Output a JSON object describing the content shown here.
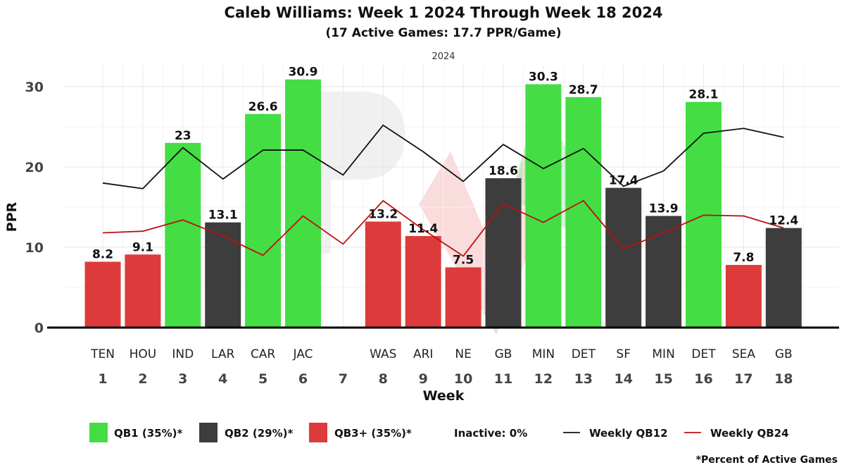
{
  "chart_data": {
    "type": "bar",
    "title": "Caleb Williams: Week 1 2024 Through Week 18 2024",
    "subtitle": "(17 Active Games: 17.7 PPR/Game)",
    "facet_label": "2024",
    "xlabel": "Week",
    "ylabel": "PPR",
    "ylim": [
      0,
      32
    ],
    "yticks": [
      0,
      10,
      20,
      30
    ],
    "grid": true,
    "weeks": [
      1,
      2,
      3,
      4,
      5,
      6,
      7,
      8,
      9,
      10,
      11,
      12,
      13,
      14,
      15,
      16,
      17,
      18
    ],
    "opponents": [
      "TEN",
      "HOU",
      "IND",
      "LAR",
      "CAR",
      "JAC",
      "",
      "WAS",
      "ARI",
      "NE",
      "GB",
      "MIN",
      "DET",
      "SF",
      "MIN",
      "DET",
      "SEA",
      "GB"
    ],
    "values": [
      8.2,
      9.1,
      23,
      13.1,
      26.6,
      30.9,
      null,
      13.2,
      11.4,
      7.5,
      18.6,
      30.3,
      28.7,
      17.4,
      13.9,
      28.1,
      7.8,
      12.4
    ],
    "value_labels": [
      "8.2",
      "9.1",
      "23",
      "13.1",
      "26.6",
      "30.9",
      "",
      "13.2",
      "11.4",
      "7.5",
      "18.6",
      "30.3",
      "28.7",
      "17.4",
      "13.9",
      "28.1",
      "7.8",
      "12.4"
    ],
    "tiers": [
      "QB3+",
      "QB3+",
      "QB1",
      "QB2",
      "QB1",
      "QB1",
      "",
      "QB3+",
      "QB3+",
      "QB3+",
      "QB2",
      "QB1",
      "QB1",
      "QB2",
      "QB2",
      "QB1",
      "QB3+",
      "QB2"
    ],
    "tier_colors": {
      "QB1": "#44dd44",
      "QB2": "#3d3d3d",
      "QB3+": "#dd3b3b"
    },
    "series": [
      {
        "name": "Weekly QB12",
        "color": "#111111",
        "values": [
          18.0,
          17.3,
          22.4,
          18.5,
          22.1,
          22.1,
          19.0,
          25.2,
          21.9,
          18.2,
          22.8,
          19.8,
          22.3,
          17.6,
          19.5,
          24.2,
          24.8,
          23.7
        ]
      },
      {
        "name": "Weekly QB24",
        "color": "#bb1111",
        "values": [
          11.8,
          12.0,
          13.4,
          11.4,
          9.0,
          13.9,
          10.4,
          15.8,
          12.2,
          8.9,
          15.4,
          13.1,
          15.8,
          9.8,
          11.8,
          14.0,
          13.9,
          12.4
        ]
      }
    ],
    "legend": {
      "position": "bottom",
      "items": [
        {
          "label": "QB1 (35%)*",
          "kind": "box",
          "color": "#44dd44"
        },
        {
          "label": "QB2 (29%)*",
          "kind": "box",
          "color": "#3d3d3d"
        },
        {
          "label": "QB3+ (35%)*",
          "kind": "box",
          "color": "#dd3b3b"
        },
        {
          "label": "Inactive: 0%",
          "kind": "text",
          "color": ""
        },
        {
          "label": "Weekly QB12",
          "kind": "line",
          "color": "#111111"
        },
        {
          "label": "Weekly QB24",
          "kind": "line",
          "color": "#bb1111"
        }
      ]
    },
    "footnote": "*Percent of Active Games"
  }
}
